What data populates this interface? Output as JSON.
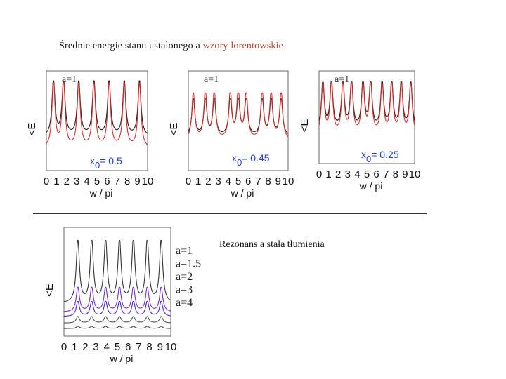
{
  "header": {
    "title_plain": "Średnie energie stanu ustalonego a ",
    "title_accent": "wzory lorentowskie",
    "accent_color": "#b5442b"
  },
  "bottom_caption": "Rezonans a stała tłumienia",
  "chart_data": [
    {
      "type": "line",
      "ylabel": "<E",
      "xlabel": "w / pi",
      "xlim": [
        0,
        10
      ],
      "xticks": [
        "0",
        "1",
        "2",
        "3",
        "4",
        "5",
        "6",
        "7",
        "8",
        "9",
        "10"
      ],
      "top_label": "a=1",
      "param_label": "x0= 0.5",
      "param_color": "#1f3fd6",
      "peaks": [
        0.7,
        1.7,
        3.2,
        4.7,
        6.2,
        7.7,
        9.2
      ],
      "series": [
        {
          "color": "#1a1a1a",
          "baseline": 0.34,
          "peak": 0.9
        },
        {
          "color": "#d92b2b",
          "baseline": 0.22,
          "peak": 0.88
        }
      ]
    },
    {
      "type": "line",
      "ylabel": "<E",
      "xlabel": "w / pi",
      "xlim": [
        0,
        10
      ],
      "xticks": [
        "0",
        "1",
        "2",
        "3",
        "4",
        "5",
        "6",
        "7",
        "8",
        "9",
        "10"
      ],
      "top_label": "a=1",
      "param_label": "x0= 0.45",
      "param_color": "#1f3fd6",
      "peaks": [
        0.5,
        1.7,
        2.6,
        4.2,
        5.0,
        5.8,
        7.4,
        8.3,
        9.3
      ],
      "series": [
        {
          "color": "#1a1a1a",
          "baseline": 0.34,
          "peak": 0.72
        },
        {
          "color": "#d92b2b",
          "baseline": 0.3,
          "peak": 0.78
        }
      ]
    },
    {
      "type": "line",
      "ylabel": "<E",
      "xlabel": "w / pi",
      "xlim": [
        0,
        10
      ],
      "xticks": [
        "0",
        "1",
        "2",
        "3",
        "4",
        "5",
        "6",
        "7",
        "8",
        "9",
        "10"
      ],
      "top_label": "a=1",
      "param_label": "x0= 0.25",
      "param_color": "#1f3fd6",
      "peaks": [
        0.4,
        1.3,
        2.5,
        3.4,
        4.6,
        5.4,
        6.6,
        7.6,
        8.6,
        9.6
      ],
      "series": [
        {
          "color": "#1a1a1a",
          "baseline": 0.36,
          "peak": 0.88
        },
        {
          "color": "#d92b2b",
          "baseline": 0.3,
          "peak": 0.86
        }
      ]
    },
    {
      "type": "line",
      "ylabel": "<E",
      "xlabel": "w / pi",
      "xlim": [
        0,
        10
      ],
      "xticks": [
        "0",
        "1",
        "2",
        "3",
        "4",
        "5",
        "6",
        "7",
        "8",
        "9",
        "10"
      ],
      "peaks": [
        1.3,
        2.6,
        3.9,
        5.2,
        6.5,
        7.8,
        9.1
      ],
      "legend": [
        "a=1",
        "a=1.5",
        "a=2",
        "a=3",
        "a=4"
      ],
      "series": [
        {
          "name": "a=1",
          "color": "#333333",
          "baseline": 0.3,
          "peak": 0.88
        },
        {
          "name": "a=1.5",
          "color": "#7a2ad0",
          "baseline": 0.22,
          "peak": 0.45
        },
        {
          "name": "a=2",
          "color": "#3b2bd6",
          "baseline": 0.18,
          "peak": 0.32
        },
        {
          "name": "a=3",
          "color": "#555555",
          "baseline": 0.12,
          "peak": 0.18
        },
        {
          "name": "a=4",
          "color": "#444444",
          "baseline": 0.07,
          "peak": 0.09
        }
      ]
    }
  ]
}
